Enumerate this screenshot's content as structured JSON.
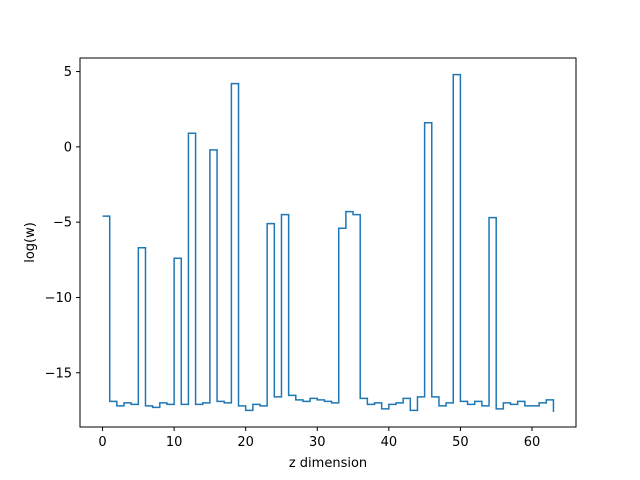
{
  "chart_data": {
    "type": "line",
    "drawstyle": "steps-post",
    "title": "",
    "xlabel": "z dimension",
    "ylabel": "log(w)",
    "xlim": [
      -3.15,
      66.15
    ],
    "ylim": [
      -18.6,
      5.9
    ],
    "grid": false,
    "line_color": "#1f77b4",
    "x_ticks": [
      0,
      10,
      20,
      30,
      40,
      50,
      60
    ],
    "x_tick_labels": [
      "0",
      "10",
      "20",
      "30",
      "40",
      "50",
      "60"
    ],
    "y_ticks": [
      5,
      0,
      -5,
      -10,
      -15
    ],
    "y_tick_labels": [
      "5",
      "0",
      "−5",
      "−10",
      "−15"
    ],
    "series": [
      {
        "name": "",
        "x": [
          0,
          1,
          2,
          3,
          4,
          5,
          6,
          7,
          8,
          9,
          10,
          11,
          12,
          13,
          14,
          15,
          16,
          17,
          18,
          19,
          20,
          21,
          22,
          23,
          24,
          25,
          26,
          27,
          28,
          29,
          30,
          31,
          32,
          33,
          34,
          35,
          36,
          37,
          38,
          39,
          40,
          41,
          42,
          43,
          44,
          45,
          46,
          47,
          48,
          49,
          50,
          51,
          52,
          53,
          54,
          55,
          56,
          57,
          58,
          59,
          60,
          61,
          62,
          63
        ],
        "y": [
          -4.6,
          -16.9,
          -17.2,
          -17.0,
          -17.1,
          -6.7,
          -17.2,
          -17.3,
          -17.0,
          -17.1,
          -7.4,
          -17.1,
          0.9,
          -17.1,
          -17.0,
          -0.2,
          -16.9,
          -17.0,
          4.2,
          -17.2,
          -17.5,
          -17.1,
          -17.2,
          -5.1,
          -16.6,
          -4.5,
          -16.5,
          -16.8,
          -16.9,
          -16.7,
          -16.8,
          -16.9,
          -17.0,
          -5.4,
          -4.3,
          -4.5,
          -16.7,
          -17.1,
          -17.0,
          -17.4,
          -17.1,
          -17.0,
          -16.7,
          -17.5,
          -16.6,
          1.6,
          -16.6,
          -17.2,
          -17.0,
          4.8,
          -16.9,
          -17.1,
          -16.9,
          -17.2,
          -4.7,
          -17.4,
          -17.0,
          -17.1,
          -16.9,
          -17.2,
          -17.2,
          -17.0,
          -16.8,
          -17.6
        ]
      }
    ]
  }
}
